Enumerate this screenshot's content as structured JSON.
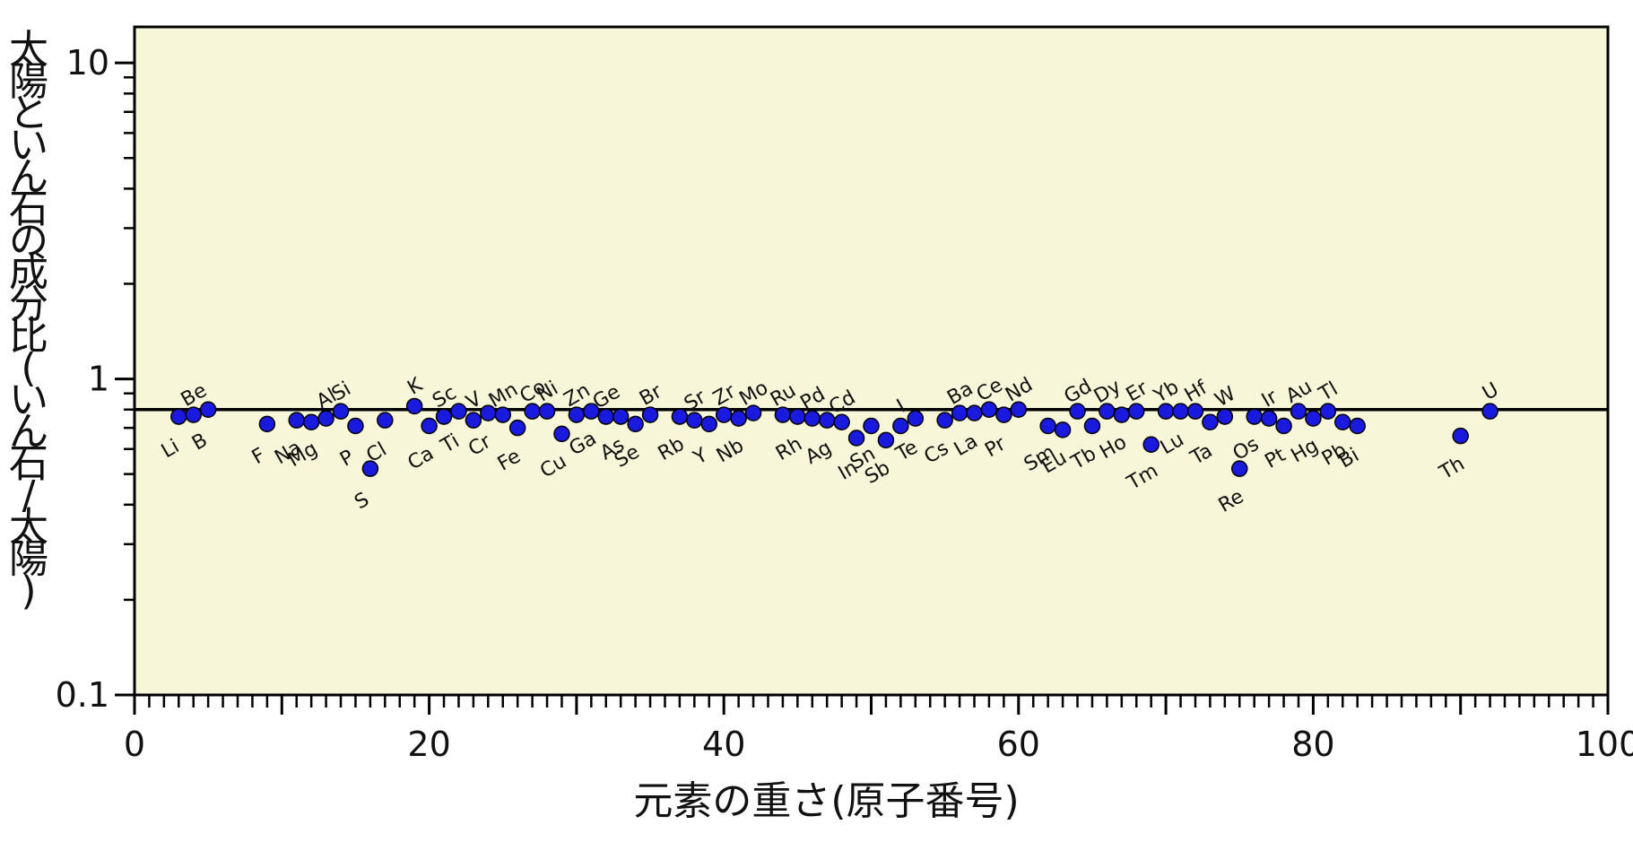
{
  "chart_data": {
    "type": "scatter",
    "xlabel": "元素の重さ(原子番号)",
    "ylabel": "太陽といん石の成分比(いん石/太陽)",
    "xlim": [
      0,
      100
    ],
    "ylim": [
      0.1,
      13
    ],
    "y_scale": "log",
    "x_ticks": [
      0,
      20,
      40,
      60,
      80,
      100
    ],
    "y_ticks": [
      0.1,
      1,
      10
    ],
    "x_tick_labels": [
      "0",
      "20",
      "40",
      "60",
      "80",
      "100"
    ],
    "y_tick_labels": [
      "0.1",
      "1",
      "10"
    ],
    "reference_line_y": 0.8,
    "colors": {
      "plot_bg": "#f8f6d9",
      "marker": "#1a1adf",
      "marker_edge": "#000000",
      "line": "#000000"
    },
    "points": [
      {
        "z": 3,
        "el": "Li",
        "y": 0.76,
        "pos": "below"
      },
      {
        "z": 4,
        "el": "Be",
        "y": 0.77,
        "pos": "above"
      },
      {
        "z": 5,
        "el": "B",
        "y": 0.8,
        "pos": "below"
      },
      {
        "z": 9,
        "el": "F",
        "y": 0.72,
        "pos": "below"
      },
      {
        "z": 11,
        "el": "Na",
        "y": 0.74,
        "pos": "below"
      },
      {
        "z": 12,
        "el": "Mg",
        "y": 0.73,
        "pos": "below"
      },
      {
        "z": 13,
        "el": "Al",
        "y": 0.75,
        "pos": "above"
      },
      {
        "z": 14,
        "el": "Si",
        "y": 0.79,
        "pos": "above"
      },
      {
        "z": 15,
        "el": "P",
        "y": 0.71,
        "pos": "below"
      },
      {
        "z": 16,
        "el": "S",
        "y": 0.52,
        "pos": "below"
      },
      {
        "z": 17,
        "el": "Cl",
        "y": 0.74,
        "pos": "below"
      },
      {
        "z": 19,
        "el": "K",
        "y": 0.82,
        "pos": "above"
      },
      {
        "z": 20,
        "el": "Ca",
        "y": 0.71,
        "pos": "below"
      },
      {
        "z": 21,
        "el": "Sc",
        "y": 0.76,
        "pos": "above"
      },
      {
        "z": 22,
        "el": "Ti",
        "y": 0.79,
        "pos": "below"
      },
      {
        "z": 23,
        "el": "V",
        "y": 0.74,
        "pos": "above"
      },
      {
        "z": 24,
        "el": "Cr",
        "y": 0.78,
        "pos": "below"
      },
      {
        "z": 25,
        "el": "Mn",
        "y": 0.77,
        "pos": "above"
      },
      {
        "z": 26,
        "el": "Fe",
        "y": 0.7,
        "pos": "below"
      },
      {
        "z": 27,
        "el": "Co",
        "y": 0.79,
        "pos": "above"
      },
      {
        "z": 28,
        "el": "Ni",
        "y": 0.79,
        "pos": "above"
      },
      {
        "z": 29,
        "el": "Cu",
        "y": 0.67,
        "pos": "below"
      },
      {
        "z": 30,
        "el": "Zn",
        "y": 0.77,
        "pos": "above"
      },
      {
        "z": 31,
        "el": "Ga",
        "y": 0.79,
        "pos": "below"
      },
      {
        "z": 32,
        "el": "Ge",
        "y": 0.76,
        "pos": "above"
      },
      {
        "z": 33,
        "el": "As",
        "y": 0.76,
        "pos": "below"
      },
      {
        "z": 34,
        "el": "Se",
        "y": 0.72,
        "pos": "below"
      },
      {
        "z": 35,
        "el": "Br",
        "y": 0.77,
        "pos": "above"
      },
      {
        "z": 37,
        "el": "Rb",
        "y": 0.76,
        "pos": "below"
      },
      {
        "z": 38,
        "el": "Sr",
        "y": 0.74,
        "pos": "above"
      },
      {
        "z": 39,
        "el": "Y",
        "y": 0.72,
        "pos": "below"
      },
      {
        "z": 40,
        "el": "Zr",
        "y": 0.77,
        "pos": "above"
      },
      {
        "z": 41,
        "el": "Nb",
        "y": 0.75,
        "pos": "below"
      },
      {
        "z": 42,
        "el": "Mo",
        "y": 0.78,
        "pos": "above"
      },
      {
        "z": 44,
        "el": "Ru",
        "y": 0.77,
        "pos": "above"
      },
      {
        "z": 45,
        "el": "Rh",
        "y": 0.76,
        "pos": "below"
      },
      {
        "z": 46,
        "el": "Pd",
        "y": 0.75,
        "pos": "above"
      },
      {
        "z": 47,
        "el": "Ag",
        "y": 0.74,
        "pos": "below"
      },
      {
        "z": 48,
        "el": "Cd",
        "y": 0.73,
        "pos": "above"
      },
      {
        "z": 49,
        "el": "In",
        "y": 0.65,
        "pos": "below"
      },
      {
        "z": 50,
        "el": "Sn",
        "y": 0.71,
        "pos": "below"
      },
      {
        "z": 51,
        "el": "Sb",
        "y": 0.64,
        "pos": "below"
      },
      {
        "z": 52,
        "el": "I",
        "y": 0.71,
        "pos": "above"
      },
      {
        "z": 53,
        "el": "Te",
        "y": 0.75,
        "pos": "below"
      },
      {
        "z": 55,
        "el": "Cs",
        "y": 0.74,
        "pos": "below"
      },
      {
        "z": 56,
        "el": "Ba",
        "y": 0.78,
        "pos": "above"
      },
      {
        "z": 57,
        "el": "La",
        "y": 0.78,
        "pos": "below"
      },
      {
        "z": 58,
        "el": "Ce",
        "y": 0.8,
        "pos": "above"
      },
      {
        "z": 59,
        "el": "Pr",
        "y": 0.77,
        "pos": "below"
      },
      {
        "z": 60,
        "el": "Nd",
        "y": 0.8,
        "pos": "above"
      },
      {
        "z": 62,
        "el": "Sm",
        "y": 0.71,
        "pos": "below"
      },
      {
        "z": 63,
        "el": "Eu",
        "y": 0.69,
        "pos": "below"
      },
      {
        "z": 64,
        "el": "Gd",
        "y": 0.79,
        "pos": "above"
      },
      {
        "z": 65,
        "el": "Tb",
        "y": 0.71,
        "pos": "below"
      },
      {
        "z": 66,
        "el": "Dy",
        "y": 0.79,
        "pos": "above"
      },
      {
        "z": 67,
        "el": "Ho",
        "y": 0.77,
        "pos": "below"
      },
      {
        "z": 68,
        "el": "Er",
        "y": 0.79,
        "pos": "above"
      },
      {
        "z": 69,
        "el": "Tm",
        "y": 0.62,
        "pos": "below"
      },
      {
        "z": 70,
        "el": "Yb",
        "y": 0.79,
        "pos": "above"
      },
      {
        "z": 71,
        "el": "Lu",
        "y": 0.79,
        "pos": "below"
      },
      {
        "z": 72,
        "el": "Hf",
        "y": 0.79,
        "pos": "above"
      },
      {
        "z": 73,
        "el": "Ta",
        "y": 0.73,
        "pos": "below"
      },
      {
        "z": 74,
        "el": "W",
        "y": 0.76,
        "pos": "above"
      },
      {
        "z": 75,
        "el": "Re",
        "y": 0.52,
        "pos": "below"
      },
      {
        "z": 76,
        "el": "Os",
        "y": 0.76,
        "pos": "below"
      },
      {
        "z": 77,
        "el": "Ir",
        "y": 0.75,
        "pos": "above"
      },
      {
        "z": 78,
        "el": "Pt",
        "y": 0.71,
        "pos": "below"
      },
      {
        "z": 79,
        "el": "Au",
        "y": 0.79,
        "pos": "above"
      },
      {
        "z": 80,
        "el": "Hg",
        "y": 0.75,
        "pos": "below"
      },
      {
        "z": 81,
        "el": "Tl",
        "y": 0.79,
        "pos": "above"
      },
      {
        "z": 82,
        "el": "Pb",
        "y": 0.73,
        "pos": "below"
      },
      {
        "z": 83,
        "el": "Bi",
        "y": 0.71,
        "pos": "below"
      },
      {
        "z": 90,
        "el": "Th",
        "y": 0.66,
        "pos": "below"
      },
      {
        "z": 92,
        "el": "U",
        "y": 0.79,
        "pos": "above"
      }
    ]
  }
}
